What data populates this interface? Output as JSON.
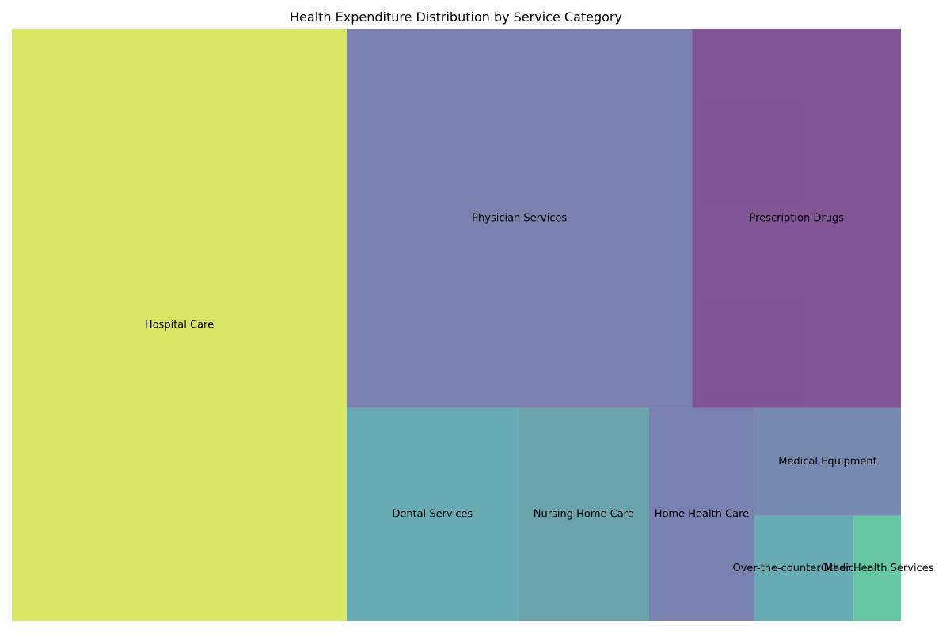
{
  "chart_data": {
    "type": "treemap",
    "title": "Health Expenditure Distribution by Service Category",
    "items": [
      {
        "name": "Hospital Care",
        "value": 1192,
        "color": "#d4e34f"
      },
      {
        "name": "Physician Services",
        "value": 787,
        "color": "#6870a6"
      },
      {
        "name": "Prescription Drugs",
        "value": 475,
        "color": "#6e3c86"
      },
      {
        "name": "Dental Services",
        "value": 220,
        "color": "#52a0a8"
      },
      {
        "name": "Nursing Home Care",
        "value": 168,
        "color": "#56969f"
      },
      {
        "name": "Home Health Care",
        "value": 135,
        "color": "#6770a6"
      },
      {
        "name": "Medical Equipment",
        "value": 95,
        "color": "#6478a6"
      },
      {
        "name": "Over-the-counter Medicines",
        "value": 63,
        "color": "#52a0a8"
      },
      {
        "name": "Other Health Services",
        "value": 30,
        "color": "#52be97"
      }
    ]
  }
}
